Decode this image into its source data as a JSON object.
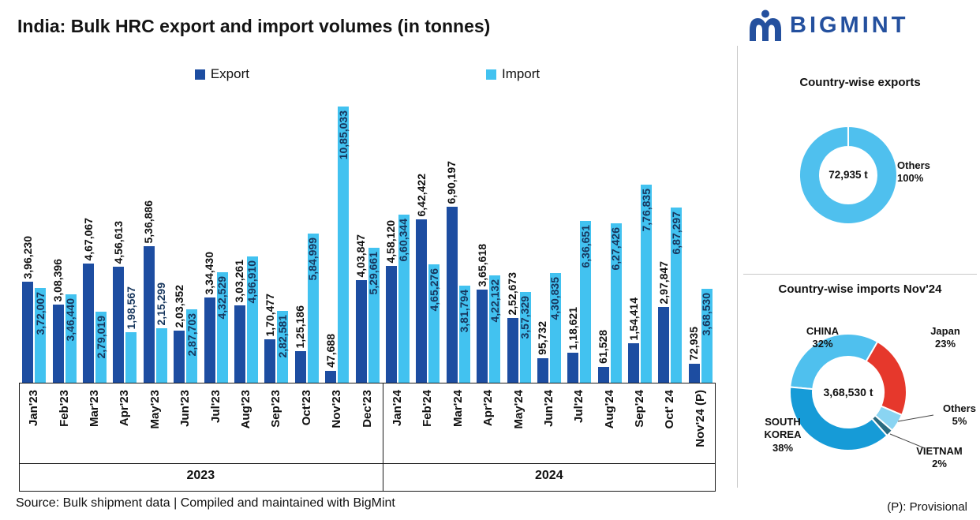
{
  "title": "India: Bulk HRC export and import volumes (in tonnes)",
  "logo": {
    "text": "BIGMINT",
    "color": "#24509e"
  },
  "footer": {
    "source": "Source: Bulk shipment data | Compiled and maintained with BigMint",
    "provisional": "(P): Provisional"
  },
  "chart_data": [
    {
      "type": "bar",
      "title": "India: Bulk HRC export and import volumes (in tonnes)",
      "unit": "tonnes",
      "legend_position": "top",
      "categories": [
        "Jan'23",
        "Feb'23",
        "Mar'23",
        "Apr'23",
        "May'23",
        "Jun'23",
        "Jul'23",
        "Aug'23",
        "Sep'23",
        "Oct'23",
        "Nov'23",
        "Dec'23",
        "Jan'24",
        "Feb'24",
        "Mar'24",
        "Apr'24",
        "May'24",
        "Jun'24",
        "Jul'24",
        "Aug'24",
        "Sep'24",
        "Oct' 24",
        "Nov'24 (P)"
      ],
      "year_groups": [
        {
          "label": "2023",
          "span": 12
        },
        {
          "label": "2024",
          "span": 11
        }
      ],
      "ylim": [
        0,
        1085033
      ],
      "series": [
        {
          "name": "Export",
          "color": "#1d4da1",
          "values": [
            396230,
            308396,
            467067,
            456613,
            536886,
            203352,
            334430,
            303261,
            170477,
            125186,
            47688,
            403847,
            458120,
            642422,
            690197,
            365618,
            252673,
            95732,
            118621,
            61528,
            154414,
            297847,
            72935
          ],
          "labels": [
            "3,96,230",
            "3,08,396",
            "4,67,067",
            "4,56,613",
            "5,36,886",
            "2,03,352",
            "3,34,430",
            "3,03,261",
            "1,70,477",
            "1,25,186",
            "47,688",
            "4,03,847",
            "4,58,120",
            "6,42,422",
            "6,90,197",
            "3,65,618",
            "2,52,673",
            "95,732",
            "1,18,621",
            "61,528",
            "1,54,414",
            "2,97,847",
            "72,935"
          ]
        },
        {
          "name": "Import",
          "color": "#42c2f0",
          "values": [
            372007,
            346440,
            279019,
            198567,
            215299,
            287703,
            432529,
            496910,
            282581,
            584999,
            1085033,
            529661,
            660344,
            465276,
            381794,
            422132,
            357329,
            430835,
            636651,
            627426,
            776835,
            687297,
            368530
          ],
          "labels": [
            "3,72,007",
            "3,46,440",
            "2,79,019",
            "1,98,567",
            "2,15,299",
            "2,87,703",
            "4,32,529",
            "4,96,910",
            "2,82,581",
            "5,84,999",
            "10,85,033",
            "5,29,661",
            "6,60,344",
            "4,65,276",
            "3,81,794",
            "4,22,132",
            "3,57,329",
            "4,30,835",
            "6,36,651",
            "6,27,426",
            "7,76,835",
            "6,87,297",
            "3,68,530"
          ]
        }
      ]
    },
    {
      "type": "pie",
      "title": "Country-wise exports",
      "center_label": "72,935 t",
      "start_angle": 0,
      "slices": [
        {
          "label": "Others",
          "pct": 100,
          "pct_label": "100%",
          "color": "#4fc0ee"
        }
      ]
    },
    {
      "type": "pie",
      "title": "Country-wise imports Nov'24",
      "center_label": "3,68,530 t",
      "start_angle": 275,
      "slices": [
        {
          "label": "CHINA",
          "pct": 32,
          "pct_label": "32%",
          "color": "#4fc0ee"
        },
        {
          "label": "Japan",
          "pct": 23,
          "pct_label": "23%",
          "color": "#e6382c"
        },
        {
          "label": "Others",
          "pct": 5,
          "pct_label": "5%",
          "color": "#8ad4f2"
        },
        {
          "label": "VIETNAM",
          "pct": 2,
          "pct_label": "2%",
          "color": "#2a6a80"
        },
        {
          "label": "SOUTH KOREA",
          "pct": 38,
          "pct_label": "38%",
          "color": "#169bd7"
        }
      ]
    }
  ]
}
